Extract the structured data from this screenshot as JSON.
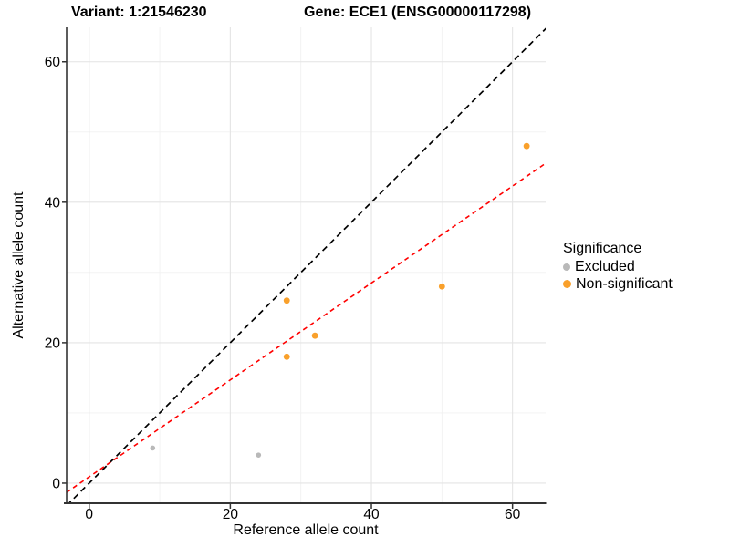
{
  "legend": {
    "title": "Significance",
    "items": [
      {
        "label": "Excluded",
        "color": "#b9b9b9",
        "size": 8
      },
      {
        "label": "Non-significant",
        "color": "#f9a02b",
        "size": 9
      }
    ]
  },
  "chart_data": {
    "type": "scatter",
    "titles": [
      "Variant: 1:21546230",
      "Gene: ECE1 (ENSG00000117298)"
    ],
    "xlabel": "Reference allele count",
    "ylabel": "Alternative allele count",
    "xlim": [
      -3.2,
      64.7
    ],
    "ylim": [
      -2.86,
      64.9
    ],
    "x_ticks": [
      0,
      20,
      40,
      60
    ],
    "y_ticks": [
      0,
      20,
      40,
      60
    ],
    "x_minor_ticks": [
      10,
      30,
      50
    ],
    "y_minor_ticks": [
      10,
      30,
      50
    ],
    "grid": true,
    "legend_position": "right",
    "colors": {
      "major_grid": "#e4e4e4",
      "minor_grid": "#f1f1f1",
      "axis_line": "#333333",
      "tick_text": "#000000",
      "identity_line": "#000000",
      "regression_line": "#ff0000"
    },
    "series": [
      {
        "name": "Excluded",
        "color": "#b9b9b9",
        "marker_radius": 2.8,
        "points": [
          [
            9,
            5
          ],
          [
            24,
            4
          ]
        ]
      },
      {
        "name": "Non-significant",
        "color": "#f9a02b",
        "marker_radius": 3.4,
        "points": [
          [
            28,
            26
          ],
          [
            32,
            21
          ],
          [
            28,
            18
          ],
          [
            50,
            28
          ],
          [
            62,
            48
          ]
        ]
      }
    ],
    "lines": [
      {
        "name": "identity-line",
        "color": "#000000",
        "dash": "6.5 4.5",
        "slope": 1,
        "intercept": 0,
        "width": 1.7
      },
      {
        "name": "regression-line",
        "color": "#ff0000",
        "dash": "5 4",
        "slope": 0.69,
        "intercept": 0.9,
        "width": 1.6
      }
    ]
  }
}
